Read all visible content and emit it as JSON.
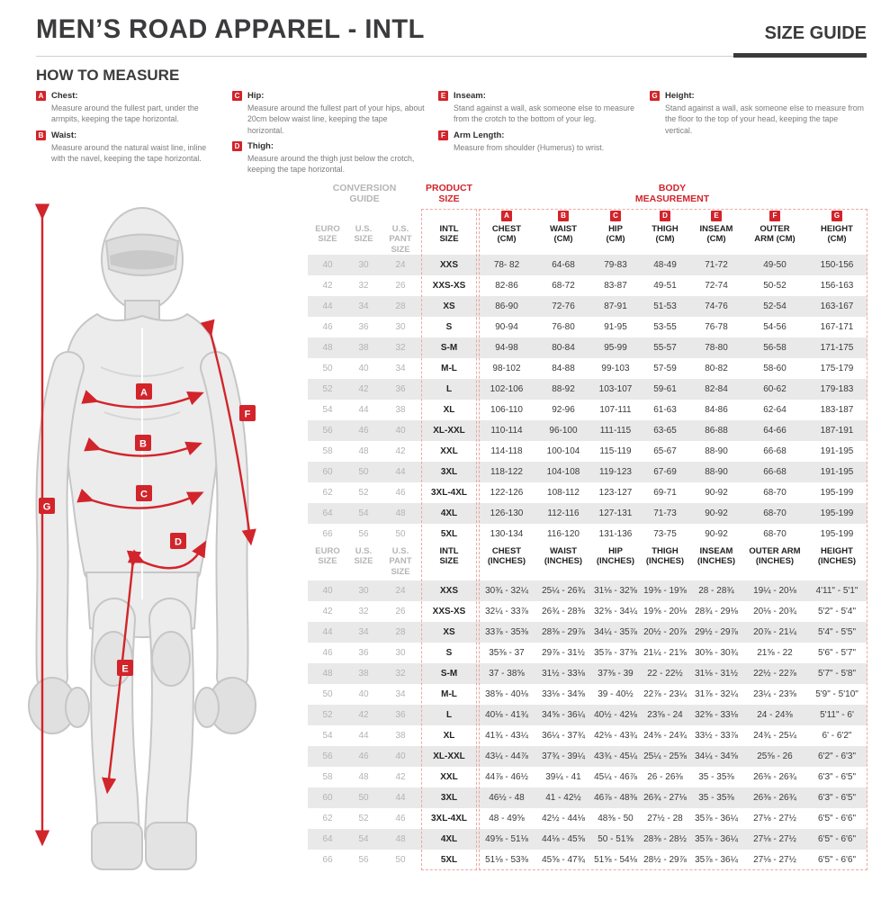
{
  "colors": {
    "accent_red": "#d2242b",
    "dark_text": "#3b3b3d",
    "muted_gray": "#b5b5b5",
    "row_stripe": "#e9e9e9"
  },
  "page": {
    "title": "MEN’S ROAD APPAREL - INTL",
    "size_guide_label": "SIZE GUIDE"
  },
  "how_to_measure": {
    "title": "HOW TO MEASURE",
    "items": [
      {
        "letter": "A",
        "name": "Chest:",
        "text": "Measure around the fullest part, under the armpits, keeping the tape horizontal."
      },
      {
        "letter": "B",
        "name": "Waist:",
        "text": "Measure around the natural waist line, inline with the navel, keeping the tape horizontal."
      },
      {
        "letter": "C",
        "name": "Hip:",
        "text": "Measure around the fullest part of your hips, about 20cm below waist line, keeping the tape horizontal."
      },
      {
        "letter": "D",
        "name": "Thigh:",
        "text": "Measure around the thigh just below the crotch, keeping the tape horizontal."
      },
      {
        "letter": "E",
        "name": "Inseam:",
        "text": "Stand against a wall, ask someone else to measure from the crotch to the bottom of your leg."
      },
      {
        "letter": "F",
        "name": "Arm Length:",
        "text": "Measure from shoulder (Humerus) to wrist."
      },
      {
        "letter": "G",
        "name": "Height:",
        "text": "Stand against a wall, ask someone else to measure from the floor to the top of your head, keeping the tape vertical."
      }
    ]
  },
  "figure": {
    "badge_letters": [
      "A",
      "B",
      "C",
      "D",
      "E",
      "F",
      "G"
    ]
  },
  "table": {
    "groups": {
      "conversion": "CONVERSION\nGUIDE",
      "product": "PRODUCT\nSIZE",
      "body": "BODY\nMEASUREMENT"
    },
    "letters": [
      "A",
      "B",
      "C",
      "D",
      "E",
      "F",
      "G"
    ],
    "cm": {
      "headers": [
        "EURO\nSIZE",
        "U.S.\nSIZE",
        "U.S.\nPANT SIZE",
        "INTL\nSIZE",
        "CHEST\n(CM)",
        "WAIST\n(CM)",
        "HIP\n(CM)",
        "THIGH\n(CM)",
        "INSEAM\n(CM)",
        "OUTER\nARM (CM)",
        "HEIGHT\n(CM)"
      ],
      "rows": [
        [
          "40",
          "30",
          "24",
          "XXS",
          "78- 82",
          "64-68",
          "79-83",
          "48-49",
          "71-72",
          "49-50",
          "150-156"
        ],
        [
          "42",
          "32",
          "26",
          "XXS-XS",
          "82-86",
          "68-72",
          "83-87",
          "49-51",
          "72-74",
          "50-52",
          "156-163"
        ],
        [
          "44",
          "34",
          "28",
          "XS",
          "86-90",
          "72-76",
          "87-91",
          "51-53",
          "74-76",
          "52-54",
          "163-167"
        ],
        [
          "46",
          "36",
          "30",
          "S",
          "90-94",
          "76-80",
          "91-95",
          "53-55",
          "76-78",
          "54-56",
          "167-171"
        ],
        [
          "48",
          "38",
          "32",
          "S-M",
          "94-98",
          "80-84",
          "95-99",
          "55-57",
          "78-80",
          "56-58",
          "171-175"
        ],
        [
          "50",
          "40",
          "34",
          "M-L",
          "98-102",
          "84-88",
          "99-103",
          "57-59",
          "80-82",
          "58-60",
          "175-179"
        ],
        [
          "52",
          "42",
          "36",
          "L",
          "102-106",
          "88-92",
          "103-107",
          "59-61",
          "82-84",
          "60-62",
          "179-183"
        ],
        [
          "54",
          "44",
          "38",
          "XL",
          "106-110",
          "92-96",
          "107-111",
          "61-63",
          "84-86",
          "62-64",
          "183-187"
        ],
        [
          "56",
          "46",
          "40",
          "XL-XXL",
          "110-114",
          "96-100",
          "111-115",
          "63-65",
          "86-88",
          "64-66",
          "187-191"
        ],
        [
          "58",
          "48",
          "42",
          "XXL",
          "114-118",
          "100-104",
          "115-119",
          "65-67",
          "88-90",
          "66-68",
          "191-195"
        ],
        [
          "60",
          "50",
          "44",
          "3XL",
          "118-122",
          "104-108",
          "119-123",
          "67-69",
          "88-90",
          "66-68",
          "191-195"
        ],
        [
          "62",
          "52",
          "46",
          "3XL-4XL",
          "122-126",
          "108-112",
          "123-127",
          "69-71",
          "90-92",
          "68-70",
          "195-199"
        ],
        [
          "64",
          "54",
          "48",
          "4XL",
          "126-130",
          "112-116",
          "127-131",
          "71-73",
          "90-92",
          "68-70",
          "195-199"
        ],
        [
          "66",
          "56",
          "50",
          "5XL",
          "130-134",
          "116-120",
          "131-136",
          "73-75",
          "90-92",
          "68-70",
          "195-199"
        ]
      ]
    },
    "inches": {
      "headers": [
        "EURO\nSIZE",
        "U.S.\nSIZE",
        "U.S.\nPANT SIZE",
        "INTL\nSIZE",
        "CHEST\n(INCHES)",
        "WAIST\n(INCHES)",
        "HIP\n(INCHES)",
        "THIGH\n(INCHES)",
        "INSEAM\n(INCHES)",
        "OUTER ARM\n(INCHES)",
        "HEIGHT\n(INCHES)"
      ],
      "rows": [
        [
          "40",
          "30",
          "24",
          "XXS",
          "30¾ - 32¼",
          "25¼ - 26¾",
          "31⅛ - 32⅝",
          "19⅜ - 19⅝",
          "28 - 28¾",
          "19¼ - 20⅛",
          "4'11\" - 5'1\""
        ],
        [
          "42",
          "32",
          "26",
          "XXS-XS",
          "32¼ - 33⅞",
          "26¾ - 28⅜",
          "32⅝ - 34¼",
          "19⅝ - 20⅛",
          "28¾ - 29⅛",
          "20⅛ - 20¾",
          "5'2\" - 5'4\""
        ],
        [
          "44",
          "34",
          "28",
          "XS",
          "33⅞ - 35⅜",
          "28⅜ - 29⅞",
          "34¼ - 35⅞",
          "20½ - 20⅞",
          "29½ - 29⅞",
          "20⅞ - 21¼",
          "5'4\" - 5'5\""
        ],
        [
          "46",
          "36",
          "30",
          "S",
          "35⅜ - 37",
          "29⅞ - 31½",
          "35⅞ - 37⅜",
          "21¼ - 21⅝",
          "30⅜ - 30¾",
          "21⅝ - 22",
          "5'6\" - 5'7\""
        ],
        [
          "48",
          "38",
          "32",
          "S-M",
          "37 - 38⅝",
          "31½ - 33⅛",
          "37⅜ - 39",
          "22 - 22½",
          "31⅛ - 31½",
          "22½ - 22⅞",
          "5'7\" - 5'8\""
        ],
        [
          "50",
          "40",
          "34",
          "M-L",
          "38⅝ - 40⅛",
          "33⅛ - 34⅝",
          "39 - 40½",
          "22⅞ - 23¼",
          "31⅞ - 32¼",
          "23¼ - 23⅝",
          "5'9\" - 5'10\""
        ],
        [
          "52",
          "42",
          "36",
          "L",
          "40⅛ - 41¾",
          "34⅝ - 36¼",
          "40½ - 42⅛",
          "23⅝ - 24",
          "32⅝ - 33⅛",
          "24 - 24⅜",
          "5'11\" - 6'"
        ],
        [
          "54",
          "44",
          "38",
          "XL",
          "41¾ - 43¼",
          "36¼ - 37¾",
          "42⅛ - 43¾",
          "24⅜ - 24¾",
          "33½ - 33⅞",
          "24¾ - 25¼",
          "6' - 6'2\""
        ],
        [
          "56",
          "46",
          "40",
          "XL-XXL",
          "43¼ - 44⅞",
          "37¾ - 39¼",
          "43¾ - 45¼",
          "25¼ - 25⅝",
          "34¼ - 34⅝",
          "25⅝ - 26",
          "6'2\" - 6'3\""
        ],
        [
          "58",
          "48",
          "42",
          "XXL",
          "44⅞ - 46½",
          "39¼ - 41",
          "45¼ - 46⅞",
          "26 - 26⅜",
          "35 - 35⅜",
          "26⅜ - 26¾",
          "6'3\" - 6'5\""
        ],
        [
          "60",
          "50",
          "44",
          "3XL",
          "46½ - 48",
          "41 - 42½",
          "46⅞ - 48⅜",
          "26¾ - 27⅛",
          "35 - 35⅜",
          "26⅜ - 26¾",
          "6'3\" - 6'5\""
        ],
        [
          "62",
          "52",
          "46",
          "3XL-4XL",
          "48 - 49⅝",
          "42½ - 44⅛",
          "48⅜ - 50",
          "27½ - 28",
          "35⅞ - 36¼",
          "27⅛ - 27½",
          "6'5\" - 6'6\""
        ],
        [
          "64",
          "54",
          "48",
          "4XL",
          "49⅝ - 51⅛",
          "44⅛ - 45⅝",
          "50 - 51⅝",
          "28⅜ - 28½",
          "35⅞ - 36¼",
          "27⅛ - 27½",
          "6'5\" - 6'6\""
        ],
        [
          "66",
          "56",
          "50",
          "5XL",
          "51⅛ - 53⅜",
          "45⅝ - 47¾",
          "51⅝ - 54⅛",
          "28½ - 29⅞",
          "35⅞ - 36¼",
          "27⅛ - 27½",
          "6'5\" - 6'6\""
        ]
      ]
    }
  }
}
